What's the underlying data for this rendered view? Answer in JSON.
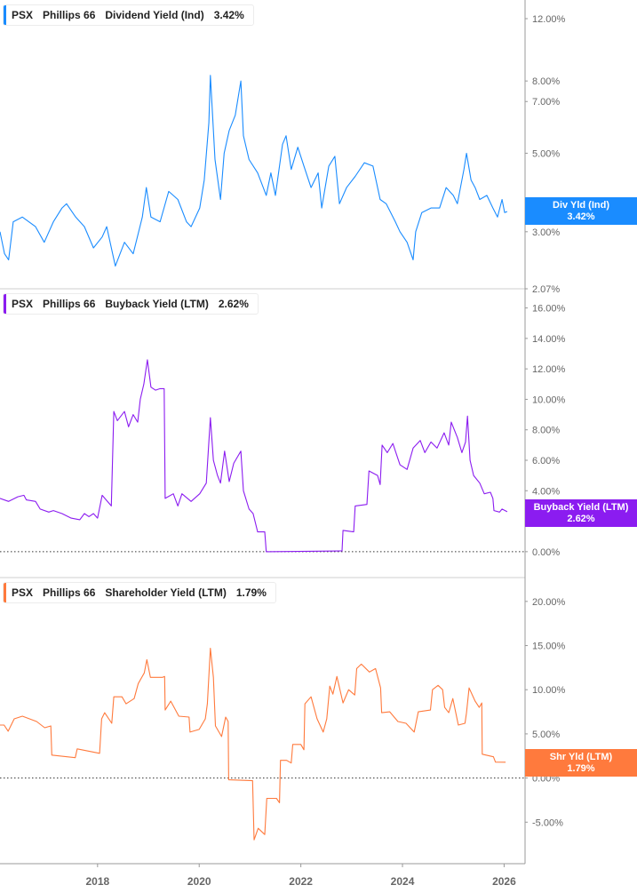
{
  "x_axis": {
    "ticks": [
      "2018",
      "2020",
      "2022",
      "2024",
      "2026"
    ],
    "tick_years": [
      2018,
      2020,
      2022,
      2024,
      2026
    ],
    "range": [
      2016.08,
      2026.4
    ]
  },
  "chart_data": [
    {
      "type": "line",
      "ticker": "PSX",
      "company": "Phillips 66",
      "metric": "Dividend Yield (Ind)",
      "current": "3.42%",
      "badge_label": "Div Yld (Ind)",
      "badge_value": "3.42%",
      "color": "#1a8cff",
      "yscale": "log",
      "ylim": [
        2.07,
        13.55
      ],
      "yticks": [
        12,
        8,
        7,
        5,
        3,
        2.07
      ],
      "ytick_labels": [
        "12.00%",
        "8.00%",
        "7.00%",
        "5.00%",
        "3.00%",
        "2.07%"
      ],
      "zero_line": false,
      "points": [
        [
          2016.08,
          3.0
        ],
        [
          2016.17,
          2.6
        ],
        [
          2016.25,
          2.5
        ],
        [
          2016.34,
          3.2
        ],
        [
          2016.52,
          3.3
        ],
        [
          2016.78,
          3.1
        ],
        [
          2016.95,
          2.8
        ],
        [
          2017.13,
          3.2
        ],
        [
          2017.3,
          3.5
        ],
        [
          2017.39,
          3.6
        ],
        [
          2017.57,
          3.3
        ],
        [
          2017.74,
          3.1
        ],
        [
          2017.92,
          2.7
        ],
        [
          2018.09,
          2.9
        ],
        [
          2018.18,
          3.1
        ],
        [
          2018.35,
          2.4
        ],
        [
          2018.53,
          2.8
        ],
        [
          2018.7,
          2.6
        ],
        [
          2018.88,
          3.3
        ],
        [
          2018.96,
          4.0
        ],
        [
          2019.05,
          3.3
        ],
        [
          2019.23,
          3.2
        ],
        [
          2019.4,
          3.9
        ],
        [
          2019.58,
          3.7
        ],
        [
          2019.75,
          3.2
        ],
        [
          2019.84,
          3.1
        ],
        [
          2020.01,
          3.5
        ],
        [
          2020.1,
          4.2
        ],
        [
          2020.19,
          6.1
        ],
        [
          2020.22,
          8.3
        ],
        [
          2020.31,
          4.8
        ],
        [
          2020.42,
          3.7
        ],
        [
          2020.49,
          5.0
        ],
        [
          2020.59,
          5.8
        ],
        [
          2020.71,
          6.4
        ],
        [
          2020.82,
          8.0
        ],
        [
          2020.87,
          5.6
        ],
        [
          2020.98,
          4.8
        ],
        [
          2021.15,
          4.4
        ],
        [
          2021.32,
          3.8
        ],
        [
          2021.41,
          4.4
        ],
        [
          2021.5,
          3.8
        ],
        [
          2021.64,
          5.3
        ],
        [
          2021.71,
          5.6
        ],
        [
          2021.81,
          4.5
        ],
        [
          2021.94,
          5.2
        ],
        [
          2022.06,
          4.6
        ],
        [
          2022.2,
          4.0
        ],
        [
          2022.34,
          4.4
        ],
        [
          2022.41,
          3.5
        ],
        [
          2022.55,
          4.6
        ],
        [
          2022.67,
          4.9
        ],
        [
          2022.76,
          3.6
        ],
        [
          2022.9,
          4.0
        ],
        [
          2023.07,
          4.3
        ],
        [
          2023.25,
          4.7
        ],
        [
          2023.42,
          4.6
        ],
        [
          2023.56,
          3.7
        ],
        [
          2023.68,
          3.6
        ],
        [
          2023.86,
          3.2
        ],
        [
          2023.95,
          3.0
        ],
        [
          2024.09,
          2.8
        ],
        [
          2024.21,
          2.5
        ],
        [
          2024.26,
          3.0
        ],
        [
          2024.38,
          3.4
        ],
        [
          2024.56,
          3.5
        ],
        [
          2024.73,
          3.5
        ],
        [
          2024.86,
          4.0
        ],
        [
          2025.0,
          3.8
        ],
        [
          2025.08,
          3.6
        ],
        [
          2025.21,
          4.5
        ],
        [
          2025.26,
          5.0
        ],
        [
          2025.35,
          4.2
        ],
        [
          2025.43,
          4.0
        ],
        [
          2025.52,
          3.7
        ],
        [
          2025.66,
          3.8
        ],
        [
          2025.78,
          3.5
        ],
        [
          2025.87,
          3.3
        ],
        [
          2025.96,
          3.7
        ],
        [
          2026.01,
          3.4
        ],
        [
          2026.06,
          3.42
        ]
      ]
    },
    {
      "type": "line",
      "ticker": "PSX",
      "company": "Phillips 66",
      "metric": "Buyback Yield (LTM)",
      "current": "2.62%",
      "badge_label": "Buyback Yield (LTM)",
      "badge_value": "2.62%",
      "color": "#8b1cf0",
      "yscale": "linear",
      "ylim": [
        -1.7,
        17.2
      ],
      "yticks": [
        16,
        14,
        12,
        10,
        8,
        6,
        4,
        2,
        0
      ],
      "ytick_labels": [
        "16.00%",
        "14.00%",
        "12.00%",
        "10.00%",
        "8.00%",
        "6.00%",
        "4.00%",
        "2.00%",
        "0.00%"
      ],
      "zero_line": true,
      "points": [
        [
          2016.08,
          3.5
        ],
        [
          2016.25,
          3.3
        ],
        [
          2016.43,
          3.6
        ],
        [
          2016.55,
          3.7
        ],
        [
          2016.6,
          3.4
        ],
        [
          2016.78,
          3.3
        ],
        [
          2016.87,
          2.8
        ],
        [
          2017.04,
          2.6
        ],
        [
          2017.13,
          2.7
        ],
        [
          2017.3,
          2.5
        ],
        [
          2017.48,
          2.2
        ],
        [
          2017.65,
          2.1
        ],
        [
          2017.74,
          2.5
        ],
        [
          2017.83,
          2.3
        ],
        [
          2017.92,
          2.5
        ],
        [
          2018.0,
          2.2
        ],
        [
          2018.09,
          3.7
        ],
        [
          2018.27,
          3.0
        ],
        [
          2018.32,
          9.2
        ],
        [
          2018.39,
          8.6
        ],
        [
          2018.53,
          9.2
        ],
        [
          2018.61,
          8.2
        ],
        [
          2018.7,
          9.0
        ],
        [
          2018.79,
          8.5
        ],
        [
          2018.84,
          10.0
        ],
        [
          2018.91,
          11.0
        ],
        [
          2018.98,
          12.6
        ],
        [
          2019.05,
          10.8
        ],
        [
          2019.14,
          10.6
        ],
        [
          2019.23,
          10.7
        ],
        [
          2019.31,
          10.7
        ],
        [
          2019.33,
          3.5
        ],
        [
          2019.49,
          3.8
        ],
        [
          2019.58,
          3.0
        ],
        [
          2019.66,
          3.8
        ],
        [
          2019.84,
          3.3
        ],
        [
          2020.01,
          3.8
        ],
        [
          2020.14,
          4.5
        ],
        [
          2020.22,
          8.8
        ],
        [
          2020.28,
          6.0
        ],
        [
          2020.36,
          5.0
        ],
        [
          2020.42,
          4.5
        ],
        [
          2020.5,
          6.6
        ],
        [
          2020.59,
          4.6
        ],
        [
          2020.68,
          5.8
        ],
        [
          2020.82,
          6.6
        ],
        [
          2020.87,
          4.0
        ],
        [
          2020.98,
          2.8
        ],
        [
          2021.06,
          2.5
        ],
        [
          2021.15,
          1.3
        ],
        [
          2021.29,
          1.3
        ],
        [
          2021.32,
          0.0
        ],
        [
          2022.81,
          0.05
        ],
        [
          2022.83,
          1.4
        ],
        [
          2023.04,
          1.3
        ],
        [
          2023.07,
          3.0
        ],
        [
          2023.3,
          3.1
        ],
        [
          2023.34,
          5.3
        ],
        [
          2023.51,
          5.0
        ],
        [
          2023.56,
          4.4
        ],
        [
          2023.6,
          7.0
        ],
        [
          2023.7,
          6.5
        ],
        [
          2023.81,
          7.1
        ],
        [
          2023.95,
          5.7
        ],
        [
          2024.09,
          5.4
        ],
        [
          2024.21,
          6.8
        ],
        [
          2024.35,
          7.3
        ],
        [
          2024.44,
          6.5
        ],
        [
          2024.56,
          7.2
        ],
        [
          2024.68,
          6.8
        ],
        [
          2024.82,
          7.8
        ],
        [
          2024.91,
          7.0
        ],
        [
          2024.96,
          8.5
        ],
        [
          2025.08,
          7.5
        ],
        [
          2025.17,
          6.5
        ],
        [
          2025.24,
          7.2
        ],
        [
          2025.28,
          8.9
        ],
        [
          2025.33,
          6.0
        ],
        [
          2025.4,
          5.0
        ],
        [
          2025.52,
          4.5
        ],
        [
          2025.61,
          3.8
        ],
        [
          2025.73,
          3.9
        ],
        [
          2025.78,
          3.5
        ],
        [
          2025.8,
          2.7
        ],
        [
          2025.91,
          2.6
        ],
        [
          2025.96,
          2.8
        ],
        [
          2026.06,
          2.62
        ]
      ]
    },
    {
      "type": "line",
      "ticker": "PSX",
      "company": "Phillips 66",
      "metric": "Shareholder Yield (LTM)",
      "current": "1.79%",
      "badge_label": "Shr Yld (LTM)",
      "badge_value": "1.79%",
      "color": "#ff7a3d",
      "yscale": "linear",
      "ylim": [
        -9.7,
        22.6
      ],
      "yticks": [
        20,
        15,
        10,
        5,
        0,
        -5
      ],
      "ytick_labels": [
        "20.00%",
        "15.00%",
        "10.00%",
        "5.00%",
        "0.00%",
        "-5.00%"
      ],
      "zero_line": true,
      "points": [
        [
          2016.08,
          6.0
        ],
        [
          2016.16,
          6.0
        ],
        [
          2016.24,
          5.3
        ],
        [
          2016.36,
          6.7
        ],
        [
          2016.52,
          7.0
        ],
        [
          2016.8,
          6.4
        ],
        [
          2016.96,
          5.7
        ],
        [
          2017.08,
          5.9
        ],
        [
          2017.1,
          2.6
        ],
        [
          2017.56,
          2.3
        ],
        [
          2017.6,
          3.3
        ],
        [
          2018.04,
          2.8
        ],
        [
          2018.08,
          6.7
        ],
        [
          2018.14,
          7.4
        ],
        [
          2018.28,
          6.2
        ],
        [
          2018.32,
          9.2
        ],
        [
          2018.48,
          9.2
        ],
        [
          2018.56,
          8.4
        ],
        [
          2018.72,
          9.0
        ],
        [
          2018.8,
          10.7
        ],
        [
          2018.92,
          11.9
        ],
        [
          2018.97,
          13.4
        ],
        [
          2019.04,
          11.4
        ],
        [
          2019.28,
          11.4
        ],
        [
          2019.32,
          11.5
        ],
        [
          2019.33,
          7.7
        ],
        [
          2019.44,
          8.7
        ],
        [
          2019.6,
          7.0
        ],
        [
          2019.8,
          6.9
        ],
        [
          2019.82,
          5.2
        ],
        [
          2020.0,
          5.5
        ],
        [
          2020.12,
          6.7
        ],
        [
          2020.16,
          8.4
        ],
        [
          2020.22,
          14.7
        ],
        [
          2020.28,
          11.4
        ],
        [
          2020.32,
          5.9
        ],
        [
          2020.44,
          4.7
        ],
        [
          2020.52,
          6.9
        ],
        [
          2020.57,
          6.4
        ],
        [
          2020.58,
          -0.2
        ],
        [
          2021.05,
          -0.3
        ],
        [
          2021.08,
          -7.0
        ],
        [
          2021.16,
          -5.7
        ],
        [
          2021.29,
          -6.4
        ],
        [
          2021.33,
          -2.3
        ],
        [
          2021.52,
          -2.3
        ],
        [
          2021.58,
          -2.8
        ],
        [
          2021.6,
          2.0
        ],
        [
          2021.72,
          2.0
        ],
        [
          2021.81,
          1.7
        ],
        [
          2021.84,
          3.8
        ],
        [
          2022.0,
          3.8
        ],
        [
          2022.06,
          3.2
        ],
        [
          2022.08,
          8.4
        ],
        [
          2022.2,
          9.2
        ],
        [
          2022.32,
          6.7
        ],
        [
          2022.44,
          5.2
        ],
        [
          2022.51,
          6.7
        ],
        [
          2022.57,
          10.4
        ],
        [
          2022.63,
          9.5
        ],
        [
          2022.71,
          11.5
        ],
        [
          2022.83,
          8.5
        ],
        [
          2022.94,
          10.0
        ],
        [
          2023.06,
          9.4
        ],
        [
          2023.1,
          12.4
        ],
        [
          2023.19,
          12.9
        ],
        [
          2023.35,
          12.0
        ],
        [
          2023.47,
          12.4
        ],
        [
          2023.57,
          10.2
        ],
        [
          2023.59,
          7.4
        ],
        [
          2023.75,
          7.5
        ],
        [
          2023.91,
          6.4
        ],
        [
          2024.07,
          6.2
        ],
        [
          2024.23,
          5.2
        ],
        [
          2024.31,
          7.5
        ],
        [
          2024.55,
          7.7
        ],
        [
          2024.59,
          10.0
        ],
        [
          2024.7,
          10.5
        ],
        [
          2024.79,
          10.0
        ],
        [
          2024.83,
          8.0
        ],
        [
          2024.91,
          7.4
        ],
        [
          2024.99,
          9.0
        ],
        [
          2025.1,
          6.0
        ],
        [
          2025.23,
          6.2
        ],
        [
          2025.26,
          7.4
        ],
        [
          2025.31,
          10.2
        ],
        [
          2025.43,
          8.7
        ],
        [
          2025.51,
          8.0
        ],
        [
          2025.56,
          8.5
        ],
        [
          2025.57,
          2.7
        ],
        [
          2025.79,
          2.4
        ],
        [
          2025.83,
          1.8
        ],
        [
          2026.03,
          1.79
        ]
      ]
    }
  ]
}
